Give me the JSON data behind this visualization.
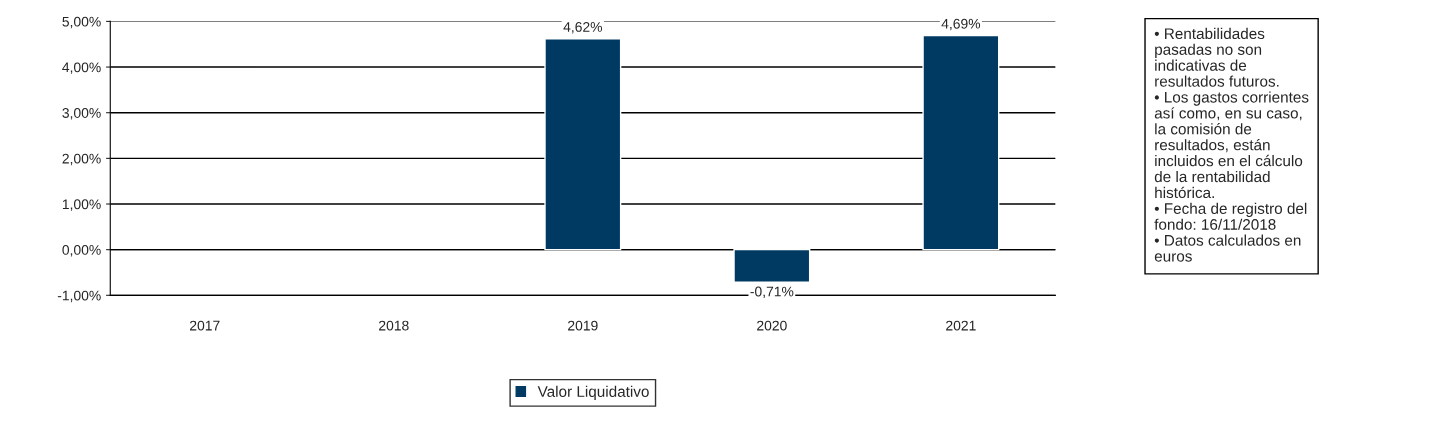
{
  "chart_data": {
    "type": "bar",
    "categories": [
      "2017",
      "2018",
      "2019",
      "2020",
      "2021"
    ],
    "series": [
      {
        "name": "Valor Liquidativo",
        "color": "#003a63",
        "values": [
          null,
          null,
          4.62,
          -0.71,
          4.69
        ],
        "value_labels": [
          null,
          null,
          "4,62%",
          "-0,71%",
          "4,69%"
        ]
      }
    ],
    "ylim": [
      -1,
      5
    ],
    "yticks": [
      {
        "value": -1,
        "label": "-1,00%"
      },
      {
        "value": 0,
        "label": "0,00%"
      },
      {
        "value": 1,
        "label": "1,00%"
      },
      {
        "value": 2,
        "label": "2,00%"
      },
      {
        "value": 3,
        "label": "3,00%"
      },
      {
        "value": 4,
        "label": "4,00%"
      },
      {
        "value": 5,
        "label": "5,00%"
      }
    ],
    "grid": "y",
    "legend": "bottom",
    "annotations": [
      "• Rentabilidades\npasadas no son\nindicativas de\nresultados futuros.\n• Los gastos corrientes\nasí como, en su caso,\nla comisión de\nresultados, están\nincluidos en el cálculo\nde la rentabilidad\nhistórica.\n• Fecha de registro del\nfondo: 16/11/2018\n• Datos calculados en\neuros"
    ]
  }
}
